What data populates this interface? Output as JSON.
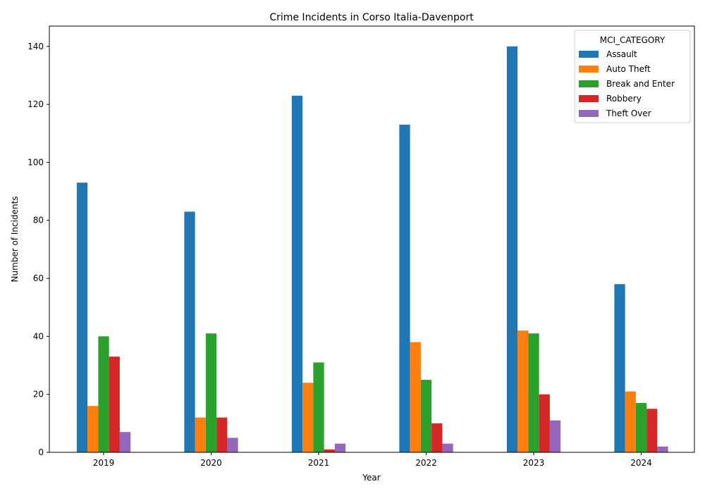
{
  "chart_data": {
    "type": "bar",
    "title": "Crime Incidents in Corso Italia-Davenport",
    "xlabel": "Year",
    "ylabel": "Number of Incidents",
    "categories": [
      "2019",
      "2020",
      "2021",
      "2022",
      "2023",
      "2024"
    ],
    "ylim": [
      0,
      147
    ],
    "yticks": [
      0,
      20,
      40,
      60,
      80,
      100,
      120,
      140
    ],
    "grid": false,
    "legend": {
      "title": "MCI_CATEGORY",
      "placement": "top-right"
    },
    "series": [
      {
        "name": "Assault",
        "color": "#1f77b4",
        "values": [
          93,
          83,
          123,
          113,
          140,
          58
        ]
      },
      {
        "name": "Auto Theft",
        "color": "#ff7f0e",
        "values": [
          16,
          12,
          24,
          38,
          42,
          21
        ]
      },
      {
        "name": "Break and Enter",
        "color": "#2ca02c",
        "values": [
          40,
          41,
          31,
          25,
          41,
          17
        ]
      },
      {
        "name": "Robbery",
        "color": "#d62728",
        "values": [
          33,
          12,
          1,
          10,
          20,
          15
        ]
      },
      {
        "name": "Theft Over",
        "color": "#9467bd",
        "values": [
          7,
          5,
          3,
          3,
          11,
          2
        ]
      }
    ]
  }
}
